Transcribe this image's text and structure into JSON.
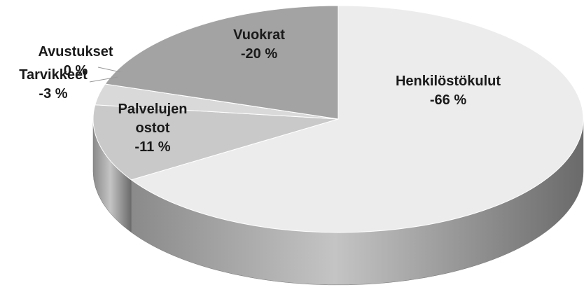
{
  "chart_data": {
    "type": "pie",
    "categories": [
      "Henkilöstökulut",
      "Palvelujen ostot",
      "Tarvikkeet",
      "Avustukset",
      "Vuokrat"
    ],
    "values": [
      -66,
      -11,
      -3,
      0,
      -20
    ],
    "value_labels": [
      "-66 %",
      "-11 %",
      "-3 %",
      "0 %",
      "-20 %"
    ],
    "colors": [
      "#ececec",
      "#c9c9c9",
      "#d9d9d9",
      "#bdbdbd",
      "#a3a3a3"
    ]
  }
}
